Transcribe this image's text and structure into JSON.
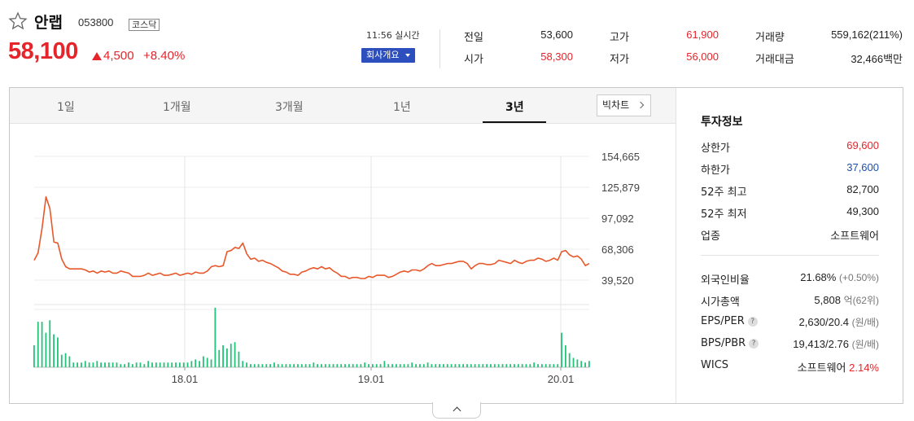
{
  "stock": {
    "name": "안랩",
    "code": "053800",
    "market": "코스닥",
    "price": "58,100",
    "change": "4,500",
    "change_pct": "+8.40%",
    "time": "11:56 실시간",
    "company_button": "회사개요",
    "up_color": "#e5242b",
    "down_color": "#1e4fa8"
  },
  "quotes": {
    "prev_close": {
      "label": "전일",
      "value": "53,600"
    },
    "open": {
      "label": "시가",
      "value": "58,300"
    },
    "high": {
      "label": "고가",
      "value": "61,900"
    },
    "low": {
      "label": "저가",
      "value": "56,000"
    },
    "volume": {
      "label": "거래량",
      "value": "559,162(211%)"
    },
    "amount": {
      "label": "거래대금",
      "value": "32,466백만"
    }
  },
  "tabs": [
    {
      "label": "1일"
    },
    {
      "label": "1개월"
    },
    {
      "label": "3개월"
    },
    {
      "label": "1년"
    },
    {
      "label": "3년",
      "active": true
    }
  ],
  "big_chart_button": "빅차트",
  "chart_data": {
    "type": "line",
    "y_ticks": [
      "154,665",
      "125,879",
      "97,092",
      "68,306",
      "39,520"
    ],
    "ylim": [
      39520,
      154665
    ],
    "x_ticks": [
      "18.01",
      "19.01",
      "20.01"
    ],
    "line_color": "#e8582a",
    "volume_color": "#23c279",
    "series": [
      {
        "values": [
          58000,
          65000,
          88000,
          117000,
          106000,
          75000,
          74000,
          59000,
          52000,
          50000,
          50000,
          50000,
          50000,
          49000,
          47000,
          48000,
          46000,
          48000,
          47000,
          48000,
          46000,
          46000,
          48000,
          47000,
          46000,
          43000,
          43000,
          43000,
          44000,
          46000,
          44000,
          45000,
          46000,
          44000,
          44000,
          45000,
          46000,
          44000,
          45000,
          46000,
          45000,
          47000,
          46000,
          46000,
          48000,
          52000,
          53000,
          52000,
          53000,
          66000,
          67000,
          70000,
          69000,
          74000,
          64000,
          59000,
          60000,
          57000,
          58000,
          56000,
          55000,
          53000,
          51000,
          48000,
          47000,
          45000,
          45000,
          44000,
          47000,
          48000,
          50000,
          51000,
          50000,
          52000,
          50000,
          51000,
          48000,
          46000,
          43000,
          43000,
          41000,
          42000,
          42000,
          41000,
          41000,
          43000,
          42000,
          44000,
          44000,
          44000,
          42000,
          43000,
          45000,
          47000,
          48000,
          47000,
          49000,
          49000,
          48000,
          50000,
          53000,
          55000,
          53000,
          53000,
          54000,
          55000,
          55000,
          56000,
          57000,
          57000,
          55000,
          50000,
          53000,
          55000,
          55000,
          54000,
          54000,
          55000,
          58000,
          57000,
          56000,
          55000,
          58000,
          56000,
          55000,
          57000,
          58000,
          58000,
          60000,
          59000,
          57000,
          58000,
          60000,
          58000,
          66000,
          67000,
          63000,
          61000,
          62000,
          59000,
          53000,
          55000
        ]
      }
    ],
    "volume": [
      14,
      29,
      29,
      22,
      30,
      21,
      19,
      8,
      9,
      7,
      3,
      3,
      3,
      4,
      3,
      3,
      4,
      3,
      3,
      3,
      3,
      3,
      2,
      2,
      3,
      2,
      3,
      3,
      2,
      4,
      3,
      3,
      3,
      3,
      3,
      3,
      3,
      3,
      3,
      3,
      4,
      5,
      4,
      7,
      6,
      5,
      38,
      11,
      14,
      12,
      15,
      16,
      10,
      4,
      3,
      2,
      2,
      2,
      2,
      2,
      2,
      3,
      2,
      2,
      2,
      2,
      2,
      2,
      2,
      2,
      2,
      3,
      2,
      2,
      2,
      2,
      2,
      2,
      2,
      2,
      2,
      2,
      2,
      2,
      3,
      2,
      2,
      2,
      2,
      4,
      2,
      2,
      2,
      2,
      2,
      2,
      3,
      2,
      2,
      2,
      3,
      2,
      2,
      2,
      2,
      2,
      2,
      2,
      2,
      2,
      2,
      2,
      2,
      2,
      2,
      2,
      2,
      2,
      2,
      2,
      2,
      2,
      2,
      2,
      2,
      2,
      2,
      3,
      2,
      2,
      2,
      2,
      2,
      2,
      22,
      14,
      9,
      6,
      5,
      4,
      3,
      4
    ]
  },
  "invest_info": {
    "title": "투자정보",
    "rows": [
      {
        "label": "상한가",
        "value": "69,600",
        "color": "#e5242b"
      },
      {
        "label": "하한가",
        "value": "37,600",
        "color": "#1e4fa8"
      },
      {
        "label": "52주 최고",
        "value": "82,700"
      },
      {
        "label": "52주 최저",
        "value": "49,300"
      },
      {
        "label": "업종",
        "value": "소프트웨어"
      }
    ],
    "rows2": [
      {
        "label": "외국인비율",
        "value": "21.68%",
        "sub": "(+0.50%)"
      },
      {
        "label": "시가총액",
        "value": "5,808",
        "sub": "억(62위)"
      },
      {
        "label": "EPS/PER",
        "help": "?",
        "value": "2,630/20.4",
        "sub": "(원/배)"
      },
      {
        "label": "BPS/PBR",
        "help": "?",
        "value": "19,413/2.76",
        "sub": "(원/배)"
      },
      {
        "label": "WICS",
        "value": "소프트웨어",
        "red": "2.14%"
      }
    ]
  }
}
